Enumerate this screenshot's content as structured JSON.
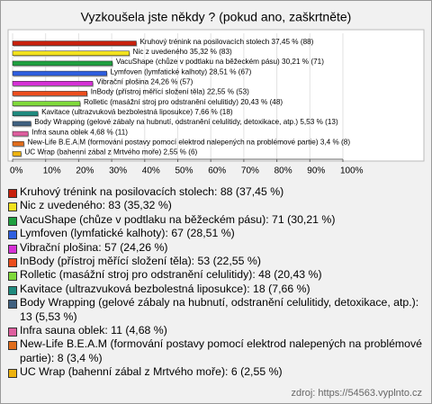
{
  "chart_data": {
    "type": "bar",
    "title": "Vyzkoušela jste někdy ? (pokud ano, zaškrtněte)",
    "values": [
      37.45,
      35.32,
      30.21,
      28.51,
      24.26,
      22.55,
      20.43,
      7.66,
      5.53,
      4.68,
      3.4,
      2.55
    ],
    "value_labels": [
      "Kruhový trénink na posilovacích stolech 37,45 % (88)",
      "Nic z uvedeného 35,32 % (83)",
      "VacuShape (chůze v podtlaku na běžeckém pásu) 30,21 % (71)",
      "Lymfoven (lymfatické kalhoty) 28,51 % (67)",
      "Vibrační plošina 24,26 % (57)",
      "InBody (přístroj měřící složení těla) 22,55 % (53)",
      "Rolletic (masážní stroj pro odstranění celulitidy) 20,43 % (48)",
      "Kavitace (ultrazvuková bezbolestná liposukce) 7,66 % (18)",
      "Body Wrapping (gelové zábaly na hubnutí, odstranění celulitidy, detoxikace, atp.) 5,53 % (13)",
      "Infra sauna oblek 4,68 % (11)",
      "New-Life B.E.A.M (formování postavy pomocí elektrod nalepených na problémové partie) 3,4 % (8)",
      "UC Wrap (bahenní zábal z Mrtvého moře) 2,55 % (6)"
    ],
    "legend_labels": [
      "Kruhový trénink na posilovacích stolech: 88 (37,45 %)",
      "Nic z uvedeného: 83 (35,32 %)",
      "VacuShape (chůze v podtlaku na běžeckém pásu): 71 (30,21 %)",
      "Lymfoven (lymfatické kalhoty): 67 (28,51 %)",
      "Vibrační plošina: 57 (24,26 %)",
      "InBody (přístroj měřící složení těla): 53 (22,55 %)",
      "Rolletic (masážní stroj pro odstranění celulitidy): 48 (20,43 %)",
      "Kavitace (ultrazvuková bezbolestná liposukce): 18 (7,66 %)",
      "Body Wrapping (gelové zábaly na hubnutí, odstranění celulitidy, detoxikace, atp.): 13 (5,53 %)",
      "Infra sauna oblek: 11 (4,68 %)",
      "New-Life B.E.A.M (formování postavy pomocí elektrod nalepených na problémové partie): 8 (3,4 %)",
      "UC Wrap (bahenní zábal z Mrtvého moře): 6 (2,55 %)"
    ],
    "colors": [
      "#c8200c",
      "#f2e21e",
      "#1fa040",
      "#2f5fe0",
      "#d631d6",
      "#ec4d1d",
      "#7fd93a",
      "#1f8a7e",
      "#3f6080",
      "#df5f9f",
      "#e06d1c",
      "#eeb30f"
    ],
    "xlim": [
      0,
      100
    ],
    "xticks": [
      {
        "value": 0,
        "label": "0%"
      },
      {
        "value": 10,
        "label": "10%"
      },
      {
        "value": 20,
        "label": "20%"
      },
      {
        "value": 30,
        "label": "30%"
      },
      {
        "value": 40,
        "label": "40%"
      },
      {
        "value": 50,
        "label": "50%"
      },
      {
        "value": 60,
        "label": "60%"
      },
      {
        "value": 70,
        "label": "70%"
      },
      {
        "value": 80,
        "label": "80%"
      },
      {
        "value": 90,
        "label": "90%"
      },
      {
        "value": 100,
        "label": "100%"
      }
    ],
    "grid": true,
    "source": "zdroj: https://54563.vyplnto.cz"
  }
}
